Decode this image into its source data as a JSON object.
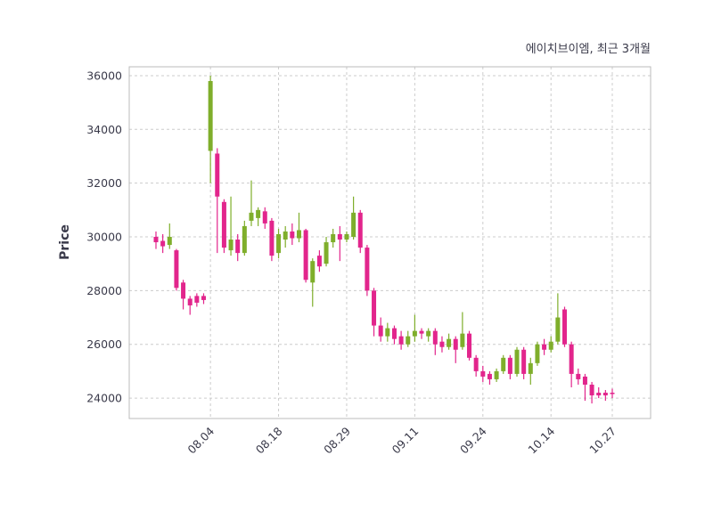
{
  "chart_data": {
    "type": "candlestick",
    "title": "에이치브이엠, 최근 3개월",
    "ylabel": "Price",
    "ylim": [
      23240,
      36330
    ],
    "yticks": [
      24000,
      26000,
      28000,
      30000,
      32000,
      34000,
      36000
    ],
    "xtick_labels": [
      "08.04",
      "08.18",
      "08.29",
      "09.11",
      "09.24",
      "10.14",
      "10.27"
    ],
    "xtick_indices": [
      8,
      18,
      28,
      38,
      48,
      58,
      67
    ],
    "legend": "none",
    "grid": "dashed",
    "colors": {
      "up": "#7fae2b",
      "down": "#e2258c",
      "grid": "#cccccc",
      "border": "#bbbbbb",
      "text": "#3a3a4a"
    },
    "candles": [
      [
        30000,
        30200,
        29550,
        29800
      ],
      [
        29850,
        30100,
        29400,
        29650
      ],
      [
        29700,
        30500,
        29550,
        30000
      ],
      [
        29500,
        29550,
        28000,
        28100
      ],
      [
        28300,
        28400,
        27300,
        27700
      ],
      [
        27700,
        27800,
        27100,
        27450
      ],
      [
        27800,
        27900,
        27400,
        27550
      ],
      [
        27800,
        27900,
        27500,
        27650
      ],
      [
        33200,
        36000,
        32000,
        35800
      ],
      [
        33100,
        33300,
        29400,
        31500
      ],
      [
        31300,
        31400,
        29400,
        29600
      ],
      [
        29500,
        31500,
        29300,
        29900
      ],
      [
        29900,
        30100,
        29100,
        29400
      ],
      [
        29400,
        30600,
        29300,
        30400
      ],
      [
        30600,
        32100,
        30400,
        30900
      ],
      [
        30700,
        31100,
        30400,
        31000
      ],
      [
        30950,
        31100,
        30300,
        30500
      ],
      [
        30600,
        30700,
        29100,
        29300
      ],
      [
        29400,
        30300,
        29200,
        30100
      ],
      [
        29900,
        30400,
        29600,
        30200
      ],
      [
        30200,
        30500,
        29700,
        29950
      ],
      [
        29950,
        30900,
        29800,
        30250
      ],
      [
        30250,
        30300,
        28300,
        28400
      ],
      [
        28300,
        29200,
        27400,
        29100
      ],
      [
        29300,
        29500,
        28700,
        28900
      ],
      [
        29000,
        30000,
        28900,
        29800
      ],
      [
        29800,
        30300,
        29600,
        30100
      ],
      [
        30100,
        30400,
        29100,
        29900
      ],
      [
        29900,
        30200,
        29800,
        30100
      ],
      [
        30000,
        31500,
        29900,
        30900
      ],
      [
        30900,
        31000,
        29400,
        29600
      ],
      [
        29600,
        29700,
        27800,
        28000
      ],
      [
        28000,
        28100,
        26300,
        26700
      ],
      [
        26700,
        27000,
        26100,
        26300
      ],
      [
        26300,
        26800,
        26100,
        26600
      ],
      [
        26600,
        26700,
        26000,
        26200
      ],
      [
        26300,
        26500,
        25800,
        26000
      ],
      [
        26000,
        26500,
        25900,
        26300
      ],
      [
        26300,
        27100,
        26100,
        26500
      ],
      [
        26500,
        26600,
        26200,
        26400
      ],
      [
        26300,
        26600,
        26100,
        26500
      ],
      [
        26500,
        26600,
        25600,
        26000
      ],
      [
        26100,
        26300,
        25700,
        25900
      ],
      [
        25900,
        26400,
        25800,
        26200
      ],
      [
        26200,
        26300,
        25300,
        25800
      ],
      [
        25900,
        27200,
        25800,
        26400
      ],
      [
        26400,
        26500,
        25400,
        25500
      ],
      [
        25500,
        25600,
        24800,
        25000
      ],
      [
        25000,
        25200,
        24600,
        24800
      ],
      [
        24900,
        25000,
        24500,
        24700
      ],
      [
        24700,
        25100,
        24600,
        25000
      ],
      [
        25000,
        25600,
        24900,
        25500
      ],
      [
        25500,
        25600,
        24700,
        24900
      ],
      [
        24900,
        25900,
        24800,
        25800
      ],
      [
        25800,
        25900,
        24700,
        24900
      ],
      [
        24900,
        25500,
        24500,
        25300
      ],
      [
        25300,
        26100,
        25200,
        26000
      ],
      [
        26000,
        26200,
        25600,
        25800
      ],
      [
        25800,
        26300,
        25700,
        26100
      ],
      [
        26100,
        27900,
        26000,
        27000
      ],
      [
        27300,
        27400,
        25900,
        26000
      ],
      [
        26000,
        26100,
        24400,
        24900
      ],
      [
        24900,
        25100,
        24500,
        24700
      ],
      [
        24800,
        24900,
        23900,
        24500
      ],
      [
        24500,
        24600,
        23800,
        24100
      ],
      [
        24200,
        24400,
        24000,
        24100
      ],
      [
        24200,
        24300,
        23900,
        24100
      ],
      [
        24200,
        24350,
        24000,
        24150
      ]
    ]
  }
}
